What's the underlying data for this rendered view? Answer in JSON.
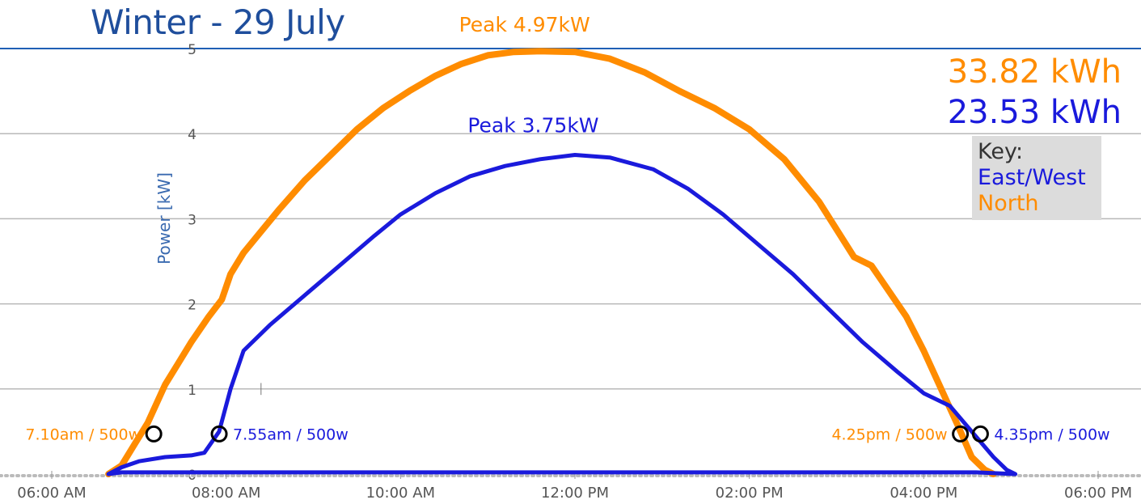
{
  "title": "Winter - 29 July",
  "totals": [
    {
      "label": "33.82 kWh",
      "color": "#ff8c00"
    },
    {
      "label": "23.53 kWh",
      "color": "#1a1adc"
    }
  ],
  "key": {
    "heading": "Key:",
    "items": [
      {
        "label": "East/West",
        "color": "#1a1adc"
      },
      {
        "label": "North",
        "color": "#ff8c00"
      }
    ]
  },
  "colors": {
    "north": "#ff8c00",
    "eastwest": "#1a1adc",
    "title": "#1f4e9c",
    "axis_label": "#3a6ab0",
    "grid": "#b8b8b8",
    "top_line": "#1f5fb5"
  },
  "chart_data": {
    "type": "line",
    "title": "Winter - 29 July",
    "ylabel": "Power [kW]",
    "xlabel": "",
    "ylim": [
      0,
      5
    ],
    "yticks": [
      0,
      1,
      2,
      3,
      4,
      5
    ],
    "xlim": [
      5.5,
      18.3
    ],
    "xticks": [
      {
        "value": 6,
        "label": "06:00 AM"
      },
      {
        "value": 8,
        "label": "08:00 AM"
      },
      {
        "value": 10,
        "label": "10:00 AM"
      },
      {
        "value": 12,
        "label": "12:00 PM"
      },
      {
        "value": 14,
        "label": "02:00 PM"
      },
      {
        "value": 16,
        "label": "04:00 PM"
      },
      {
        "value": 18,
        "label": "06:00 PM"
      }
    ],
    "grid": true,
    "legend": "right",
    "series": [
      {
        "name": "North",
        "key": "north",
        "peak_label": "Peak 4.97kW",
        "peak": [
          11.7,
          4.97
        ],
        "x": [
          6.65,
          6.8,
          6.95,
          7.1,
          7.3,
          7.45,
          7.6,
          7.8,
          7.95,
          8.05,
          8.2,
          8.4,
          8.6,
          8.9,
          9.2,
          9.5,
          9.8,
          10.1,
          10.4,
          10.7,
          11.0,
          11.3,
          11.6,
          12.0,
          12.4,
          12.8,
          13.2,
          13.6,
          14.0,
          14.4,
          14.8,
          15.2,
          15.4,
          15.5,
          15.8,
          16.0,
          16.2,
          16.4,
          16.55,
          16.7,
          16.8
        ],
        "y": [
          0,
          0.1,
          0.35,
          0.6,
          1.05,
          1.3,
          1.55,
          1.85,
          2.05,
          2.35,
          2.6,
          2.85,
          3.1,
          3.45,
          3.75,
          4.05,
          4.3,
          4.5,
          4.68,
          4.82,
          4.92,
          4.96,
          4.97,
          4.96,
          4.88,
          4.72,
          4.5,
          4.3,
          4.05,
          3.7,
          3.2,
          2.55,
          2.45,
          2.3,
          1.85,
          1.45,
          1.0,
          0.55,
          0.2,
          0.05,
          0
        ],
        "annotations": [
          {
            "label": "7.10am / 500w",
            "x": 7.17,
            "y": 0.5,
            "side": "left"
          },
          {
            "label": "4.25pm / 500w",
            "x": 16.42,
            "y": 0.5,
            "side": "left"
          }
        ]
      },
      {
        "name": "East/West",
        "key": "eastwest",
        "peak_label": "Peak 3.75kW",
        "peak": [
          11.8,
          3.75
        ],
        "x": [
          6.65,
          6.8,
          7.0,
          7.3,
          7.6,
          7.75,
          7.92,
          8.05,
          8.2,
          8.5,
          8.9,
          9.3,
          9.7,
          10.0,
          10.4,
          10.8,
          11.2,
          11.6,
          12.0,
          12.4,
          12.9,
          13.3,
          13.7,
          14.1,
          14.5,
          14.9,
          15.3,
          15.7,
          16.0,
          16.3,
          16.55,
          16.8,
          16.95,
          17.05,
          16.6,
          12.0,
          6.8,
          6.65
        ],
        "y": [
          0,
          0.08,
          0.15,
          0.2,
          0.22,
          0.25,
          0.5,
          1.0,
          1.45,
          1.75,
          2.1,
          2.45,
          2.8,
          3.05,
          3.3,
          3.5,
          3.62,
          3.7,
          3.75,
          3.72,
          3.58,
          3.35,
          3.05,
          2.7,
          2.35,
          1.95,
          1.55,
          1.2,
          0.95,
          0.8,
          0.5,
          0.2,
          0.05,
          0.0,
          0.02,
          0.02,
          0.02,
          0
        ],
        "annotations": [
          {
            "label": "7.55am / 500w",
            "x": 7.92,
            "y": 0.5,
            "side": "right"
          },
          {
            "label": "4.35pm / 500w",
            "x": 16.65,
            "y": 0.5,
            "side": "right"
          }
        ]
      }
    ]
  }
}
